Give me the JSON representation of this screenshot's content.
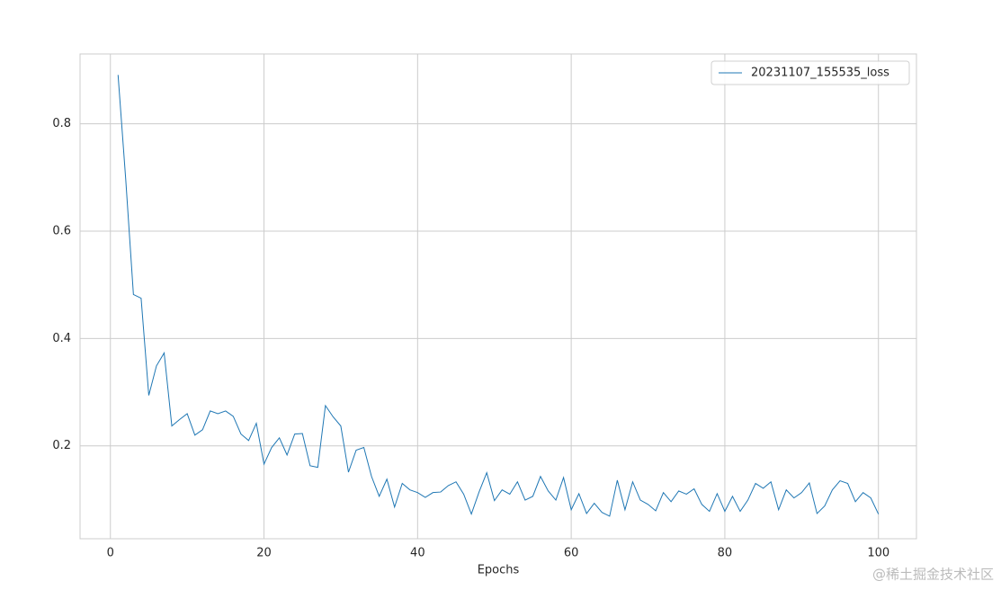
{
  "chart_data": {
    "type": "line",
    "xlabel": "Epochs",
    "x": [
      1,
      2,
      3,
      4,
      5,
      6,
      7,
      8,
      9,
      10,
      11,
      12,
      13,
      14,
      15,
      16,
      17,
      18,
      19,
      20,
      21,
      22,
      23,
      24,
      25,
      26,
      27,
      28,
      29,
      30,
      31,
      32,
      33,
      34,
      35,
      36,
      37,
      38,
      39,
      40,
      41,
      42,
      43,
      44,
      45,
      46,
      47,
      48,
      49,
      50,
      51,
      52,
      53,
      54,
      55,
      56,
      57,
      58,
      59,
      60,
      61,
      62,
      63,
      64,
      65,
      66,
      67,
      68,
      69,
      70,
      71,
      72,
      73,
      74,
      75,
      76,
      77,
      78,
      79,
      80,
      81,
      82,
      83,
      84,
      85,
      86,
      87,
      88,
      89,
      90,
      91,
      92,
      93,
      94,
      95,
      96,
      97,
      98,
      99,
      100
    ],
    "series": [
      {
        "name": "20231107_155535_loss",
        "color": "#1f77b4",
        "values": [
          0.891,
          0.696,
          0.482,
          0.475,
          0.294,
          0.349,
          0.373,
          0.237,
          0.249,
          0.26,
          0.22,
          0.23,
          0.265,
          0.26,
          0.265,
          0.255,
          0.222,
          0.21,
          0.242,
          0.166,
          0.197,
          0.215,
          0.183,
          0.222,
          0.223,
          0.163,
          0.16,
          0.275,
          0.254,
          0.237,
          0.151,
          0.192,
          0.197,
          0.143,
          0.106,
          0.138,
          0.086,
          0.13,
          0.118,
          0.113,
          0.104,
          0.113,
          0.114,
          0.126,
          0.133,
          0.11,
          0.073,
          0.114,
          0.15,
          0.098,
          0.118,
          0.11,
          0.133,
          0.099,
          0.106,
          0.143,
          0.116,
          0.099,
          0.141,
          0.081,
          0.111,
          0.074,
          0.093,
          0.076,
          0.069,
          0.136,
          0.081,
          0.133,
          0.099,
          0.091,
          0.079,
          0.113,
          0.096,
          0.116,
          0.11,
          0.12,
          0.091,
          0.078,
          0.111,
          0.078,
          0.106,
          0.078,
          0.099,
          0.13,
          0.121,
          0.133,
          0.081,
          0.118,
          0.103,
          0.113,
          0.131,
          0.074,
          0.088,
          0.118,
          0.135,
          0.13,
          0.096,
          0.113,
          0.103,
          0.073
        ]
      }
    ],
    "xlim": [
      -3.95,
      104.95
    ],
    "xticks": [
      0,
      20,
      40,
      60,
      80,
      100
    ],
    "ylim": [
      0.027,
      0.93
    ],
    "yticks": [
      0.2,
      0.4,
      0.6,
      0.8
    ],
    "grid": true,
    "legend": "upper right",
    "watermark": "@稀土掘金技术社区"
  }
}
